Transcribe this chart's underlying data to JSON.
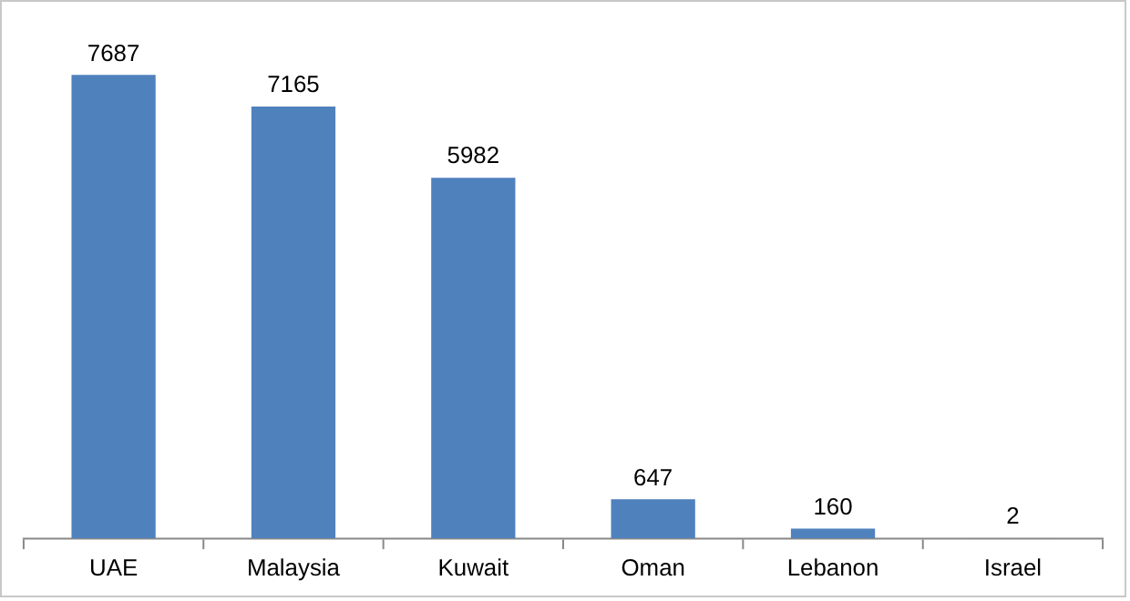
{
  "chart_data": {
    "type": "bar",
    "categories": [
      "UAE",
      "Malaysia",
      "Kuwait",
      "Oman",
      "Lebanon",
      "Israel"
    ],
    "values": [
      7687,
      7165,
      5982,
      647,
      160,
      2
    ],
    "color": "#4f81bd",
    "data_labels": true
  }
}
